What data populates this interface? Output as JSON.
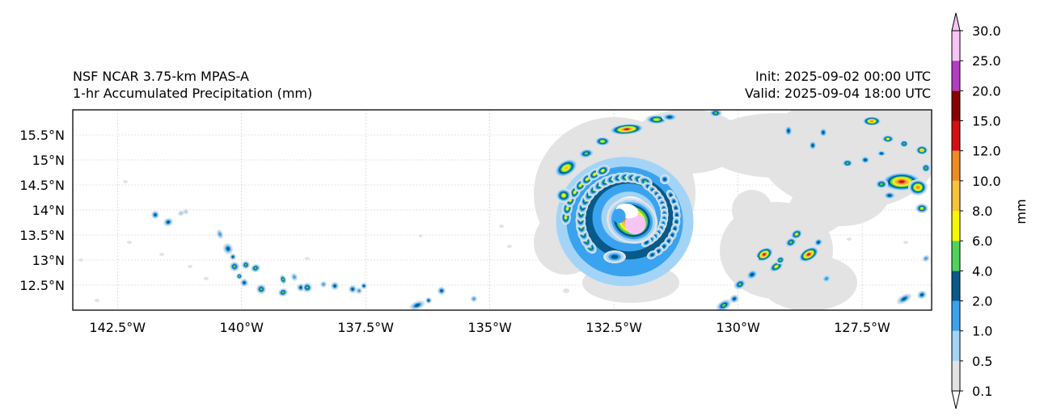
{
  "title": {
    "left_line1": "NSF NCAR 3.75-km MPAS-A",
    "left_line2": "1-hr Accumulated Precipitation (mm)",
    "right_line1": "Init: 2025-09-02 00:00 UTC",
    "right_line2": "Valid: 2025-09-04 18:00 UTC"
  },
  "map": {
    "lon_range": [
      -143.4,
      -126.1
    ],
    "lat_range": [
      12.0,
      16.0
    ],
    "lon_ticks": [
      {
        "value": -142.5,
        "label": "142.5°W"
      },
      {
        "value": -140.0,
        "label": "140°W"
      },
      {
        "value": -137.5,
        "label": "137.5°W"
      },
      {
        "value": -135.0,
        "label": "135°W"
      },
      {
        "value": -132.5,
        "label": "132.5°W"
      },
      {
        "value": -130.0,
        "label": "130°W"
      },
      {
        "value": -127.5,
        "label": "127.5°W"
      }
    ],
    "lat_ticks": [
      {
        "value": 15.5,
        "label": "15.5°N"
      },
      {
        "value": 15.0,
        "label": "15°N"
      },
      {
        "value": 14.5,
        "label": "14.5°N"
      },
      {
        "value": 14.0,
        "label": "14°N"
      },
      {
        "value": 13.5,
        "label": "13.5°N"
      },
      {
        "value": 13.0,
        "label": "13°N"
      },
      {
        "value": 12.5,
        "label": "12.5°N"
      }
    ],
    "storm_center": {
      "lon": -132.2,
      "lat": 13.85
    }
  },
  "colorbar": {
    "label": "mm",
    "levels": [
      "0.1",
      "0.5",
      "1.0",
      "2.0",
      "4.0",
      "6.0",
      "8.0",
      "10.0",
      "12.0",
      "15.0",
      "20.0",
      "25.0",
      "30.0"
    ],
    "colors": [
      "#e3e3e3",
      "#a3d4f7",
      "#3aa3f0",
      "#075a8a",
      "#4fd459",
      "#f7f700",
      "#f7c23c",
      "#ef8c21",
      "#d41111",
      "#8a0000",
      "#b33cc2",
      "#f7c4f5"
    ]
  }
}
